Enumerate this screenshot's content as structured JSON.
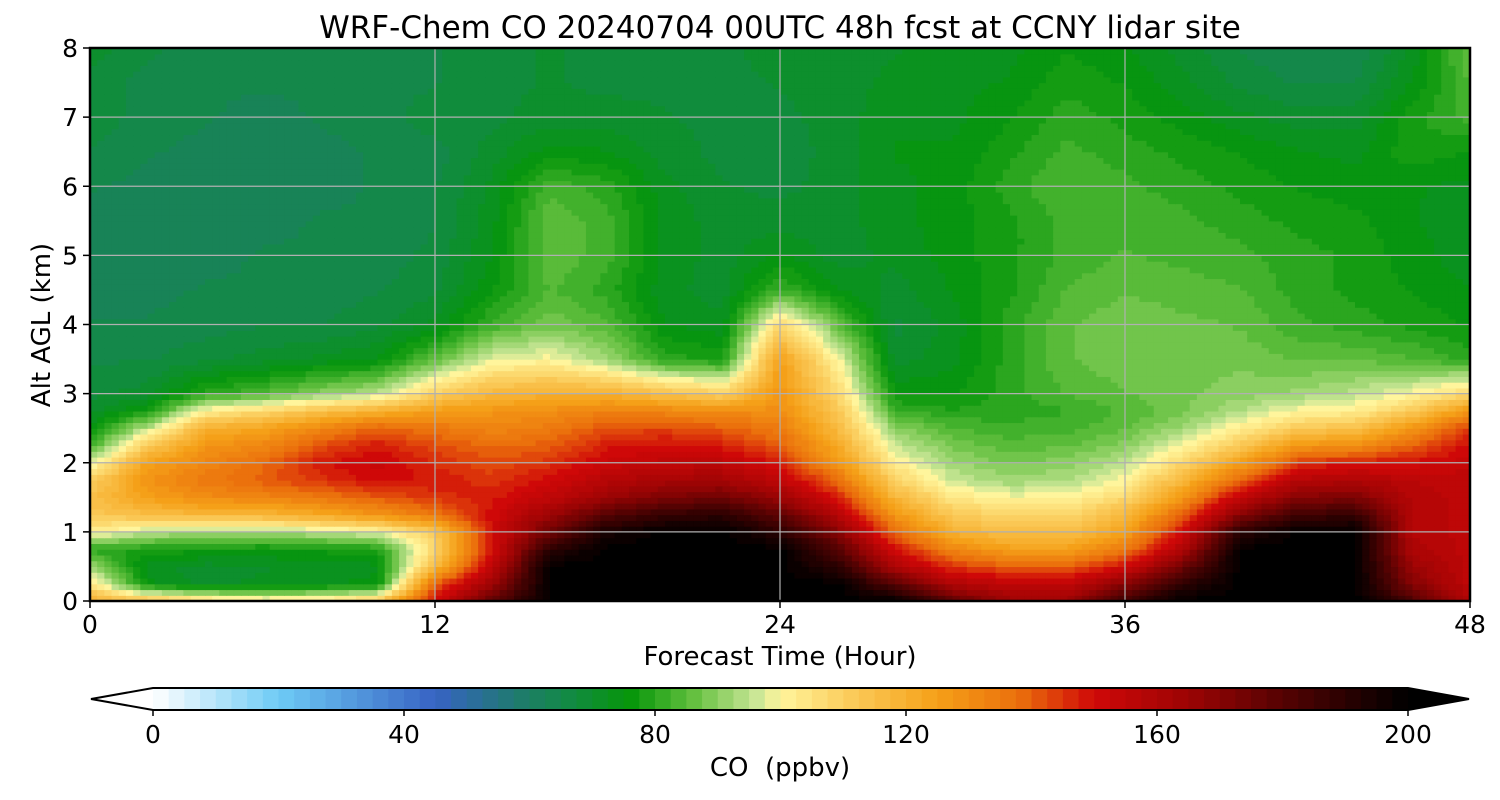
{
  "chart_data": {
    "type": "heatmap",
    "title": "WRF-Chem CO  20240704 00UTC 48h fcst at CCNY lidar site",
    "xlabel": "Forecast Time (Hour)",
    "ylabel": "Alt AGL (km)",
    "xlim": [
      0,
      48
    ],
    "ylim": [
      0,
      8
    ],
    "xticks": [
      0,
      12,
      24,
      36,
      48
    ],
    "yticks": [
      0,
      1,
      2,
      3,
      4,
      5,
      6,
      7,
      8
    ],
    "grid": true,
    "x": [
      0,
      2,
      4,
      6,
      8,
      10,
      12,
      14,
      16,
      18,
      20,
      22,
      24,
      26,
      28,
      30,
      32,
      34,
      36,
      38,
      40,
      42,
      44,
      46,
      48
    ],
    "y": [
      0,
      0.25,
      0.5,
      0.75,
      1,
      1.25,
      1.5,
      1.75,
      2,
      2.25,
      2.5,
      2.75,
      3,
      3.5,
      4,
      4.5,
      5,
      5.5,
      6,
      6.5,
      7,
      7.5,
      8
    ],
    "z": [
      [
        120,
        115,
        108,
        104,
        105,
        112,
        150,
        178,
        200,
        200,
        200,
        200,
        200,
        200,
        200,
        178,
        165,
        165,
        185,
        200,
        200,
        200,
        200,
        182,
        160
      ],
      [
        105,
        75,
        70,
        72,
        73,
        75,
        140,
        165,
        200,
        200,
        200,
        200,
        200,
        200,
        180,
        160,
        155,
        155,
        170,
        190,
        200,
        200,
        200,
        170,
        155
      ],
      [
        92,
        72,
        70,
        71,
        72,
        73,
        118,
        155,
        200,
        200,
        200,
        200,
        200,
        190,
        160,
        145,
        140,
        140,
        150,
        175,
        200,
        200,
        200,
        165,
        155
      ],
      [
        80,
        78,
        77,
        76,
        77,
        78,
        108,
        150,
        190,
        200,
        200,
        200,
        200,
        180,
        150,
        132,
        125,
        125,
        135,
        160,
        200,
        200,
        200,
        160,
        155
      ],
      [
        102,
        95,
        92,
        92,
        95,
        98,
        112,
        150,
        175,
        195,
        200,
        200,
        190,
        170,
        138,
        120,
        115,
        115,
        125,
        150,
        190,
        200,
        200,
        158,
        155
      ],
      [
        112,
        115,
        118,
        118,
        122,
        128,
        135,
        150,
        165,
        180,
        188,
        190,
        178,
        158,
        128,
        112,
        108,
        108,
        118,
        140,
        170,
        185,
        188,
        158,
        155
      ],
      [
        115,
        125,
        130,
        132,
        135,
        140,
        145,
        148,
        155,
        165,
        172,
        175,
        165,
        148,
        118,
        104,
        100,
        100,
        108,
        128,
        155,
        170,
        172,
        158,
        155
      ],
      [
        110,
        128,
        135,
        140,
        145,
        150,
        148,
        145,
        150,
        158,
        162,
        163,
        155,
        138,
        110,
        96,
        92,
        94,
        100,
        118,
        140,
        158,
        160,
        156,
        155
      ],
      [
        97,
        125,
        132,
        138,
        148,
        152,
        146,
        142,
        145,
        152,
        155,
        155,
        148,
        128,
        102,
        92,
        88,
        90,
        95,
        108,
        125,
        145,
        148,
        150,
        153
      ],
      [
        82,
        112,
        128,
        132,
        142,
        148,
        142,
        138,
        140,
        148,
        150,
        148,
        140,
        122,
        96,
        88,
        85,
        86,
        90,
        100,
        112,
        128,
        130,
        140,
        150
      ],
      [
        75,
        95,
        120,
        124,
        132,
        140,
        136,
        132,
        135,
        142,
        143,
        140,
        135,
        117,
        90,
        84,
        82,
        83,
        86,
        92,
        102,
        112,
        115,
        128,
        145
      ],
      [
        70,
        78,
        102,
        108,
        115,
        120,
        126,
        128,
        130,
        133,
        132,
        130,
        130,
        113,
        82,
        79,
        80,
        81,
        84,
        88,
        94,
        100,
        102,
        112,
        128
      ],
      [
        68,
        70,
        80,
        84,
        90,
        95,
        110,
        118,
        120,
        120,
        115,
        110,
        128,
        108,
        76,
        76,
        80,
        84,
        86,
        88,
        90,
        92,
        95,
        100,
        108
      ],
      [
        66,
        66,
        68,
        70,
        72,
        74,
        86,
        98,
        100,
        92,
        80,
        78,
        125,
        100,
        70,
        73,
        80,
        86,
        88,
        88,
        88,
        86,
        86,
        84,
        80
      ],
      [
        64,
        64,
        65,
        66,
        66,
        68,
        72,
        82,
        88,
        84,
        74,
        72,
        108,
        86,
        68,
        72,
        80,
        86,
        88,
        87,
        86,
        82,
        80,
        78,
        76
      ],
      [
        62,
        63,
        64,
        64,
        65,
        66,
        68,
        76,
        84,
        80,
        72,
        70,
        82,
        74,
        70,
        74,
        78,
        84,
        86,
        85,
        84,
        80,
        78,
        76,
        74
      ],
      [
        62,
        63,
        63,
        64,
        64,
        65,
        67,
        74,
        86,
        82,
        73,
        70,
        74,
        70,
        72,
        75,
        78,
        82,
        84,
        83,
        82,
        80,
        78,
        75,
        72
      ],
      [
        63,
        63,
        62,
        63,
        64,
        64,
        66,
        73,
        86,
        82,
        73,
        70,
        70,
        70,
        73,
        75,
        78,
        82,
        83,
        82,
        80,
        78,
        77,
        74,
        72
      ],
      [
        64,
        63,
        62,
        62,
        63,
        64,
        66,
        72,
        83,
        80,
        72,
        69,
        68,
        70,
        73,
        75,
        80,
        84,
        82,
        80,
        78,
        76,
        75,
        74,
        73
      ],
      [
        66,
        64,
        63,
        62,
        63,
        64,
        65,
        70,
        75,
        74,
        70,
        68,
        67,
        70,
        74,
        74,
        78,
        82,
        80,
        78,
        76,
        74,
        73,
        78,
        76
      ],
      [
        68,
        65,
        64,
        63,
        64,
        65,
        68,
        68,
        70,
        70,
        69,
        68,
        68,
        70,
        73,
        73,
        76,
        80,
        78,
        75,
        72,
        70,
        70,
        78,
        82
      ],
      [
        68,
        65,
        64,
        64,
        64,
        65,
        66,
        68,
        69,
        68,
        68,
        68,
        69,
        70,
        72,
        73,
        74,
        78,
        76,
        72,
        68,
        66,
        66,
        74,
        84
      ],
      [
        70,
        67,
        65,
        64,
        64,
        65,
        66,
        68,
        69,
        68,
        68,
        68,
        70,
        70,
        71,
        72,
        73,
        76,
        74,
        70,
        66,
        64,
        64,
        72,
        86
      ]
    ],
    "colorbar": {
      "label": "CO  (ppbv)",
      "min": 0,
      "max": 200,
      "ticks": [
        0,
        40,
        80,
        120,
        160,
        200
      ],
      "extend": "both",
      "colors": [
        {
          "v": 0,
          "c": "#ffffff"
        },
        {
          "v": 20,
          "c": "#6ecbf5"
        },
        {
          "v": 45,
          "c": "#3763c4"
        },
        {
          "v": 58,
          "c": "#1f7a6e"
        },
        {
          "v": 66,
          "c": "#128a45"
        },
        {
          "v": 76,
          "c": "#06960a"
        },
        {
          "v": 86,
          "c": "#62bf3e"
        },
        {
          "v": 96,
          "c": "#c8e696"
        },
        {
          "v": 100,
          "c": "#fff59c"
        },
        {
          "v": 110,
          "c": "#fbcf60"
        },
        {
          "v": 125,
          "c": "#f5a018"
        },
        {
          "v": 138,
          "c": "#eb6f0c"
        },
        {
          "v": 150,
          "c": "#cf0808"
        },
        {
          "v": 165,
          "c": "#9c0404"
        },
        {
          "v": 182,
          "c": "#4c0202"
        },
        {
          "v": 200,
          "c": "#000000"
        }
      ]
    }
  }
}
